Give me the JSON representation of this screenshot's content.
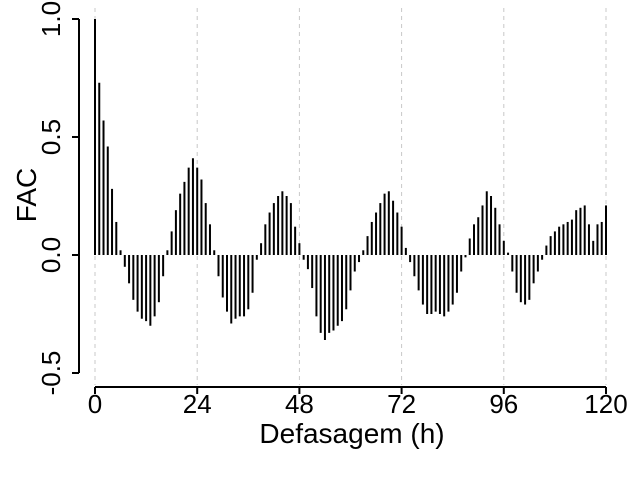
{
  "chart_data": {
    "type": "bar",
    "subtype": "acf-stem",
    "xlabel": "Defasagem (h)",
    "ylabel": "FAC",
    "xlim": [
      0,
      120
    ],
    "ylim": [
      -0.5,
      1.0
    ],
    "xticks": [
      0,
      24,
      48,
      72,
      96,
      120
    ],
    "xtick_labels": [
      "0",
      "24",
      "48",
      "72",
      "96",
      "120"
    ],
    "yticks": [
      -0.5,
      0.0,
      0.5,
      1.0
    ],
    "ytick_labels": [
      "-0.5",
      "0.0",
      "0.5",
      "1.0"
    ],
    "grid": "vertical dashed at x ticks",
    "x": [
      0,
      1,
      2,
      3,
      4,
      5,
      6,
      7,
      8,
      9,
      10,
      11,
      12,
      13,
      14,
      15,
      16,
      17,
      18,
      19,
      20,
      21,
      22,
      23,
      24,
      25,
      26,
      27,
      28,
      29,
      30,
      31,
      32,
      33,
      34,
      35,
      36,
      37,
      38,
      39,
      40,
      41,
      42,
      43,
      44,
      45,
      46,
      47,
      48,
      49,
      50,
      51,
      52,
      53,
      54,
      55,
      56,
      57,
      58,
      59,
      60,
      61,
      62,
      63,
      64,
      65,
      66,
      67,
      68,
      69,
      70,
      71,
      72,
      73,
      74,
      75,
      76,
      77,
      78,
      79,
      80,
      81,
      82,
      83,
      84,
      85,
      86,
      87,
      88,
      89,
      90,
      91,
      92,
      93,
      94,
      95,
      96,
      97,
      98,
      99,
      100,
      101,
      102,
      103,
      104,
      105,
      106,
      107,
      108,
      109,
      110,
      111,
      112,
      113,
      114,
      115,
      116,
      117,
      118,
      119,
      120
    ],
    "values": [
      1.0,
      0.73,
      0.57,
      0.46,
      0.28,
      0.14,
      0.02,
      -0.05,
      -0.12,
      -0.19,
      -0.24,
      -0.27,
      -0.28,
      -0.3,
      -0.26,
      -0.2,
      -0.09,
      0.02,
      0.1,
      0.19,
      0.26,
      0.31,
      0.37,
      0.41,
      0.37,
      0.32,
      0.22,
      0.13,
      0.02,
      -0.09,
      -0.18,
      -0.24,
      -0.29,
      -0.27,
      -0.26,
      -0.26,
      -0.23,
      -0.16,
      -0.02,
      0.05,
      0.13,
      0.18,
      0.22,
      0.25,
      0.27,
      0.25,
      0.22,
      0.12,
      0.05,
      -0.02,
      -0.06,
      -0.14,
      -0.26,
      -0.33,
      -0.36,
      -0.33,
      -0.32,
      -0.3,
      -0.28,
      -0.23,
      -0.15,
      -0.07,
      -0.03,
      0.02,
      0.08,
      0.14,
      0.18,
      0.22,
      0.26,
      0.27,
      0.23,
      0.18,
      0.12,
      0.03,
      -0.03,
      -0.09,
      -0.15,
      -0.21,
      -0.25,
      -0.25,
      -0.24,
      -0.25,
      -0.26,
      -0.24,
      -0.21,
      -0.16,
      -0.07,
      -0.01,
      0.07,
      0.13,
      0.16,
      0.21,
      0.27,
      0.25,
      0.2,
      0.13,
      0.06,
      0.01,
      -0.07,
      -0.16,
      -0.2,
      -0.21,
      -0.19,
      -0.12,
      -0.07,
      -0.02,
      0.04,
      0.08,
      0.1,
      0.12,
      0.13,
      0.14,
      0.15,
      0.19,
      0.2,
      0.21,
      0.13,
      0.06,
      0.13,
      0.14,
      0.21
    ]
  }
}
